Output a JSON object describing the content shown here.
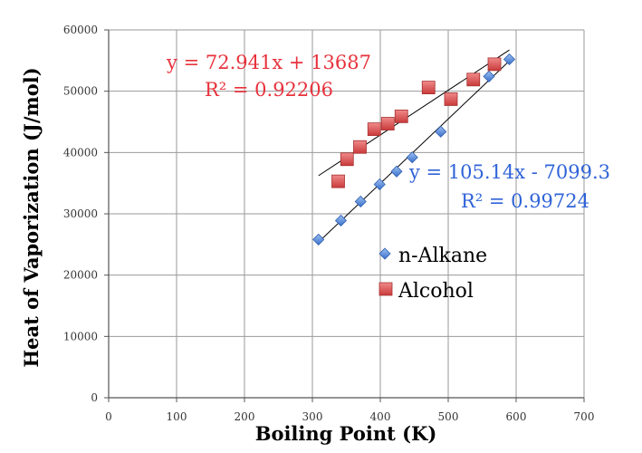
{
  "chart_data": {
    "type": "scatter",
    "xlabel": "Boiling Point (K)",
    "ylabel": "Heat of Vaporization (J/mol)",
    "xlim": [
      0,
      700
    ],
    "ylim": [
      0,
      60000
    ],
    "x_ticks": [
      0,
      100,
      200,
      300,
      400,
      500,
      600,
      700
    ],
    "y_ticks": [
      0,
      10000,
      20000,
      30000,
      40000,
      50000,
      60000
    ],
    "x_tick_labels": [
      "0",
      "100",
      "200",
      "300",
      "400",
      "500",
      "600",
      "700"
    ],
    "y_tick_labels": [
      "0",
      "10000",
      "20000",
      "30000",
      "40000",
      "50000",
      "60000"
    ],
    "grid": "both",
    "legend_position": "center-right",
    "series": [
      {
        "name": "n-Alkane",
        "marker": "diamond",
        "color": "#4a7fd4",
        "points": [
          [
            309,
            25800
          ],
          [
            342,
            28900
          ],
          [
            371,
            32000
          ],
          [
            399,
            34800
          ],
          [
            424,
            36900
          ],
          [
            447,
            39200
          ],
          [
            489,
            43400
          ],
          [
            560,
            52400
          ],
          [
            590,
            55200
          ]
        ],
        "trendline": {
          "slope": 105.14,
          "intercept": -7099.3,
          "x_range": [
            309,
            590
          ],
          "equation": "y = 105.14x - 7099.3",
          "r2_label": "R² = 0.99724",
          "label_color": "#2f63d8"
        }
      },
      {
        "name": "Alcohol",
        "marker": "square",
        "color": "#d94f4f",
        "points": [
          [
            338,
            35300
          ],
          [
            351,
            38900
          ],
          [
            370,
            40900
          ],
          [
            391,
            43800
          ],
          [
            411,
            44700
          ],
          [
            431,
            45900
          ],
          [
            471,
            50600
          ],
          [
            504,
            48700
          ],
          [
            537,
            51900
          ],
          [
            568,
            54400
          ]
        ],
        "trendline": {
          "slope": 72.941,
          "intercept": 13687,
          "x_range": [
            309,
            590
          ],
          "equation": "y = 72.941x + 13687",
          "r2_label": "R² = 0.92206",
          "label_color": "#e8323c"
        }
      }
    ]
  }
}
